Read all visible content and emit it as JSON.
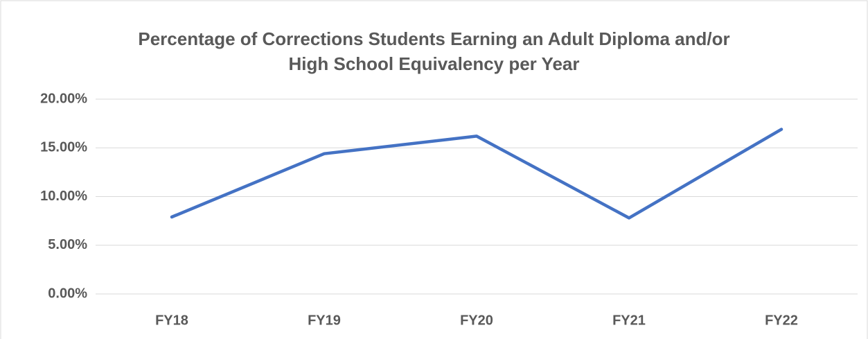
{
  "chart_data": {
    "type": "line",
    "title": "Percentage of Corrections Students Earning an Adult Diploma and/or High School Equivalency per Year",
    "categories": [
      "FY18",
      "FY19",
      "FY20",
      "FY21",
      "FY22"
    ],
    "series": [
      {
        "name": "Percentage",
        "color": "#4472c4",
        "values": [
          7.9,
          14.4,
          16.2,
          7.8,
          16.9
        ]
      }
    ],
    "ylim": [
      0,
      20
    ],
    "yticks": [
      {
        "value": 0,
        "label": "0.00%"
      },
      {
        "value": 5,
        "label": "5.00%"
      },
      {
        "value": 10,
        "label": "10.00%"
      },
      {
        "value": 15,
        "label": "15.00%"
      },
      {
        "value": 20,
        "label": "20.00%"
      }
    ],
    "grid": true
  }
}
